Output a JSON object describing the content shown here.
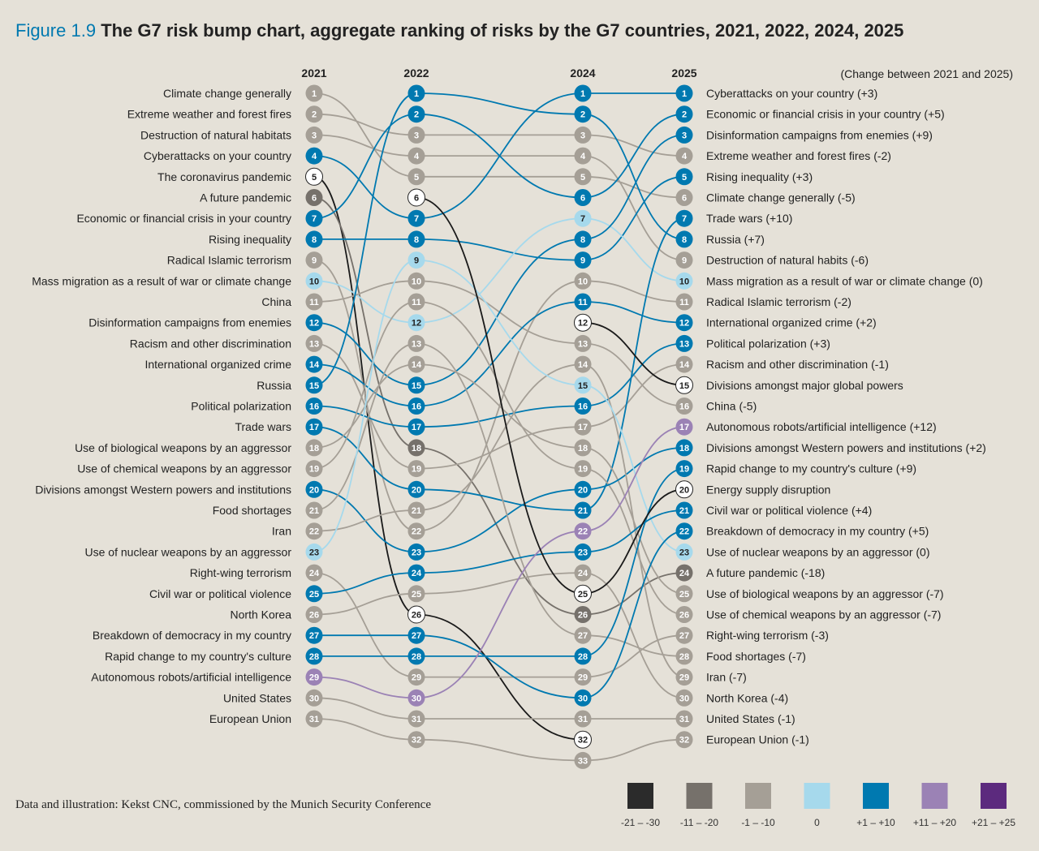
{
  "title": {
    "figure": "Figure 1.9",
    "text": "The G7 risk bump chart, aggregate ranking of risks by the G7 countries, 2021, 2022, 2024, 2025"
  },
  "footer": "Data and illustration: Kekst CNC, commissioned by the Munich Security Conference",
  "chart_data": {
    "type": "bump",
    "title": "The G7 risk bump chart, aggregate ranking of risks by the G7 countries, 2021, 2022, 2024, 2025",
    "years": [
      "2021",
      "2022",
      "2024",
      "2025"
    ],
    "change_note": "(Change between 2021 and 2025)",
    "new_color": "#ffffff",
    "legend": [
      {
        "label": "-21 – -30",
        "color": "#2b2b2b",
        "min": -30,
        "max": -21
      },
      {
        "label": "-11 – -20",
        "color": "#76716b",
        "min": -20,
        "max": -11
      },
      {
        "label": "-1 – -10",
        "color": "#a59f96",
        "min": -10,
        "max": -1
      },
      {
        "label": "0",
        "color": "#a6d9ec",
        "min": 0,
        "max": 0
      },
      {
        "label": "+1 – +10",
        "color": "#0079b0",
        "min": 1,
        "max": 10
      },
      {
        "label": "+11 – +20",
        "color": "#9b82b5",
        "min": 11,
        "max": 20
      },
      {
        "label": "+21 – +25",
        "color": "#5c2a7e",
        "min": 21,
        "max": 25
      }
    ],
    "series": [
      {
        "name": "Climate change generally",
        "right": "Climate change generally (-5)",
        "ranks": [
          1,
          5,
          5,
          6
        ]
      },
      {
        "name": "Extreme weather and forest fires",
        "right": "Extreme weather and forest fires (-2)",
        "ranks": [
          2,
          3,
          3,
          4
        ]
      },
      {
        "name": "Destruction of natural habitats",
        "right": "Destruction of natural habits (-6)",
        "ranks": [
          3,
          4,
          4,
          9
        ]
      },
      {
        "name": "Cyberattacks on your country",
        "right": "Cyberattacks on your country (+3)",
        "ranks": [
          4,
          7,
          1,
          1
        ]
      },
      {
        "name": "The coronavirus pandemic",
        "right": null,
        "ranks": [
          5,
          26,
          32,
          null
        ]
      },
      {
        "name": "A future pandemic",
        "right": "A future pandemic (-18)",
        "ranks": [
          6,
          18,
          26,
          24
        ]
      },
      {
        "name": "Economic or financial crisis in your country",
        "right": "Economic or financial crisis in your country (+5)",
        "ranks": [
          7,
          2,
          6,
          2
        ]
      },
      {
        "name": "Rising inequality",
        "right": "Rising inequality (+3)",
        "ranks": [
          8,
          8,
          9,
          5
        ]
      },
      {
        "name": "Radical Islamic terrorism",
        "right": "Radical Islamic terrorism (-2)",
        "ranks": [
          9,
          22,
          10,
          11
        ]
      },
      {
        "name": "Mass migration as a result of war or climate change",
        "right": "Mass migration as a result of war or climate change (0)",
        "ranks": [
          10,
          12,
          7,
          10
        ]
      },
      {
        "name": "China",
        "right": "China (-5)",
        "ranks": [
          11,
          10,
          13,
          16
        ]
      },
      {
        "name": "Disinformation campaigns from enemies",
        "right": "Disinformation campaigns from enemies (+9)",
        "ranks": [
          12,
          15,
          8,
          3
        ]
      },
      {
        "name": "Racism and other discrimination",
        "right": "Racism and other discrimination (-1)",
        "ranks": [
          13,
          19,
          17,
          14
        ]
      },
      {
        "name": "International organized crime",
        "right": "International organized crime (+2)",
        "ranks": [
          14,
          16,
          11,
          12
        ]
      },
      {
        "name": "Russia",
        "right": "Russia (+7)",
        "ranks": [
          15,
          1,
          2,
          8
        ]
      },
      {
        "name": "Political polarization",
        "right": "Political polarization (+3)",
        "ranks": [
          16,
          17,
          16,
          13
        ]
      },
      {
        "name": "Trade wars",
        "right": "Trade wars (+10)",
        "ranks": [
          17,
          20,
          21,
          7
        ]
      },
      {
        "name": "Use of biological weapons by an aggressor",
        "right": "Use of biological weapons by an aggressor (-7)",
        "ranks": [
          18,
          14,
          18,
          25
        ]
      },
      {
        "name": "Use of chemical weapons by an aggressor",
        "right": "Use of chemical weapons by an aggressor (-7)",
        "ranks": [
          19,
          11,
          19,
          26
        ]
      },
      {
        "name": "Divisions amongst Western powers and institutions",
        "right": "Divisions amongst Western powers and institutions (+2)",
        "ranks": [
          20,
          23,
          20,
          18
        ]
      },
      {
        "name": "Food shortages",
        "right": "Food shortages (-7)",
        "ranks": [
          21,
          13,
          27,
          28
        ]
      },
      {
        "name": "Iran",
        "right": "Iran (-7)",
        "ranks": [
          22,
          21,
          14,
          29
        ]
      },
      {
        "name": "Use of nuclear weapons by an aggressor",
        "right": "Use of nuclear weapons by an aggressor (0)",
        "ranks": [
          23,
          9,
          15,
          23
        ]
      },
      {
        "name": "Right-wing terrorism",
        "right": "Right-wing terrorism (-3)",
        "ranks": [
          24,
          29,
          29,
          27
        ]
      },
      {
        "name": "Civil war or political violence",
        "right": "Civil war or political violence (+4)",
        "ranks": [
          25,
          24,
          23,
          21
        ]
      },
      {
        "name": "North Korea",
        "right": "North Korea (-4)",
        "ranks": [
          26,
          25,
          24,
          30
        ]
      },
      {
        "name": "Breakdown of democracy in my country",
        "right": "Breakdown of democracy in my country (+5)",
        "ranks": [
          27,
          27,
          30,
          22
        ]
      },
      {
        "name": "Rapid change to my country's culture",
        "right": "Rapid change to my country's culture (+9)",
        "ranks": [
          28,
          28,
          28,
          19
        ]
      },
      {
        "name": "Autonomous robots/artificial intelligence",
        "right": "Autonomous robots/artificial intelligence (+12)",
        "ranks": [
          29,
          30,
          22,
          17
        ]
      },
      {
        "name": "United States",
        "right": "United States (-1)",
        "ranks": [
          30,
          31,
          31,
          31
        ]
      },
      {
        "name": "European Union",
        "right": "European Union (-1)",
        "ranks": [
          31,
          32,
          33,
          32
        ]
      },
      {
        "name": "Divisions amongst major global powers",
        "right": "Divisions amongst major global powers",
        "ranks": [
          null,
          null,
          12,
          15
        ]
      },
      {
        "name": "Energy supply disruption",
        "right": "Energy supply disruption",
        "ranks": [
          null,
          6,
          25,
          20
        ]
      }
    ]
  }
}
